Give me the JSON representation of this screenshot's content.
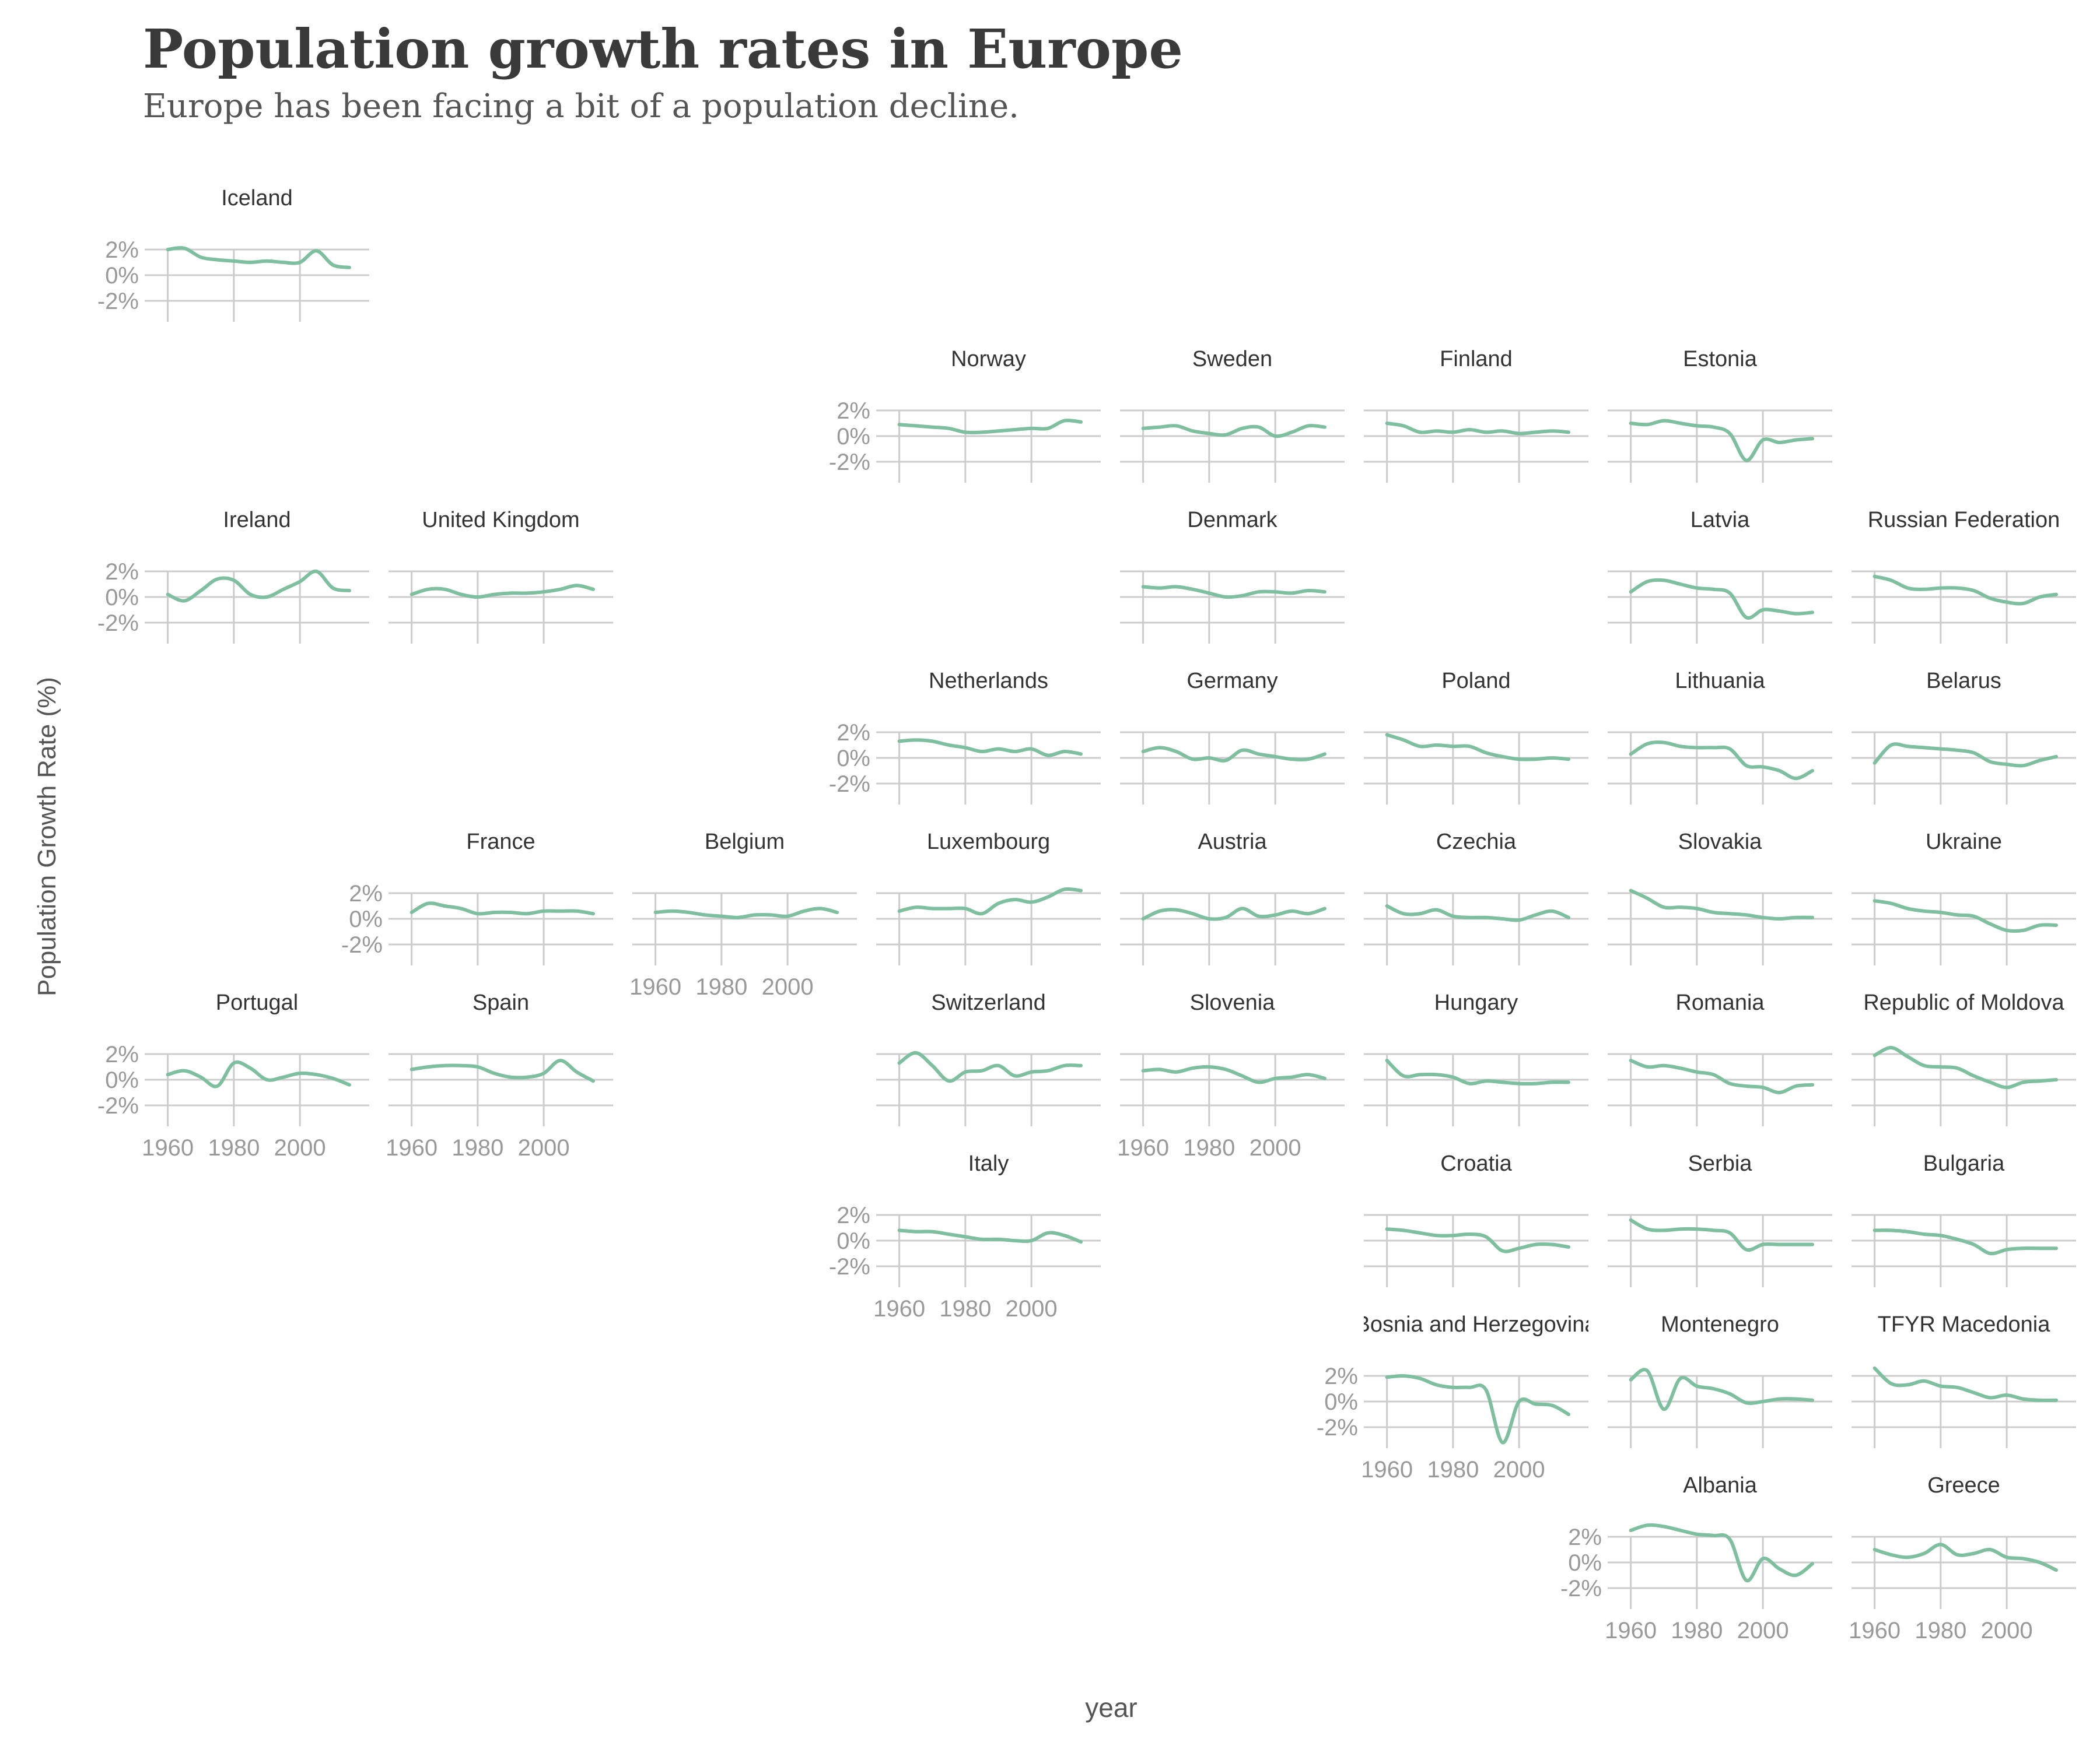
{
  "title": "Population growth rates in Europe",
  "subtitle": "Europe has been facing a bit of a population decline.",
  "chart_data": {
    "type": "line",
    "title": "Population growth rates in Europe",
    "subtitle": "Europe has been facing a bit of a population decline.",
    "xlabel": "year",
    "ylabel": "Population Growth Rate (%)",
    "x": [
      1960,
      1965,
      1970,
      1975,
      1980,
      1985,
      1990,
      1995,
      2000,
      2005,
      2010,
      2015
    ],
    "xlim": [
      1953,
      2021
    ],
    "ylim": [
      -3.2,
      3.2
    ],
    "xticks": [
      1960,
      1980,
      2000
    ],
    "yticks": [
      -2,
      0,
      2
    ],
    "ytick_labels": [
      "-2%",
      "0%",
      "2%"
    ],
    "line_color": "#7dbf9f",
    "grid": "on",
    "countries": [
      {
        "name": "Iceland",
        "row": 0,
        "col": 0,
        "y_labels": true,
        "x_labels": false,
        "values": [
          2.0,
          2.1,
          1.4,
          1.2,
          1.1,
          1.0,
          1.1,
          1.0,
          1.0,
          1.9,
          0.8,
          0.6
        ]
      },
      {
        "name": "Norway",
        "row": 1,
        "col": 3,
        "y_labels": true,
        "x_labels": false,
        "values": [
          0.9,
          0.8,
          0.7,
          0.6,
          0.3,
          0.3,
          0.4,
          0.5,
          0.6,
          0.6,
          1.2,
          1.1
        ]
      },
      {
        "name": "Sweden",
        "row": 1,
        "col": 4,
        "y_labels": false,
        "x_labels": false,
        "values": [
          0.6,
          0.7,
          0.8,
          0.4,
          0.2,
          0.1,
          0.6,
          0.7,
          0.0,
          0.3,
          0.8,
          0.7
        ]
      },
      {
        "name": "Finland",
        "row": 1,
        "col": 5,
        "y_labels": false,
        "x_labels": false,
        "values": [
          1.0,
          0.8,
          0.3,
          0.4,
          0.3,
          0.5,
          0.3,
          0.4,
          0.2,
          0.3,
          0.4,
          0.3
        ]
      },
      {
        "name": "Estonia",
        "row": 1,
        "col": 6,
        "y_labels": false,
        "x_labels": false,
        "values": [
          1.0,
          0.9,
          1.2,
          1.0,
          0.8,
          0.7,
          0.2,
          -1.9,
          -0.3,
          -0.5,
          -0.3,
          -0.2
        ]
      },
      {
        "name": "Ireland",
        "row": 2,
        "col": 0,
        "y_labels": true,
        "x_labels": false,
        "values": [
          0.2,
          -0.3,
          0.5,
          1.4,
          1.3,
          0.2,
          0.0,
          0.6,
          1.2,
          2.0,
          0.7,
          0.5
        ]
      },
      {
        "name": "United Kingdom",
        "row": 2,
        "col": 1,
        "y_labels": false,
        "x_labels": false,
        "values": [
          0.2,
          0.6,
          0.6,
          0.2,
          0.0,
          0.2,
          0.3,
          0.3,
          0.4,
          0.6,
          0.9,
          0.6
        ]
      },
      {
        "name": "Denmark",
        "row": 2,
        "col": 4,
        "y_labels": false,
        "x_labels": false,
        "values": [
          0.8,
          0.7,
          0.8,
          0.6,
          0.3,
          0.0,
          0.1,
          0.4,
          0.4,
          0.3,
          0.5,
          0.4
        ]
      },
      {
        "name": "Latvia",
        "row": 2,
        "col": 6,
        "y_labels": false,
        "x_labels": false,
        "values": [
          0.4,
          1.2,
          1.3,
          1.0,
          0.7,
          0.6,
          0.3,
          -1.6,
          -1.0,
          -1.1,
          -1.3,
          -1.2
        ]
      },
      {
        "name": "Russian Federation",
        "row": 2,
        "col": 7,
        "y_labels": false,
        "x_labels": false,
        "values": [
          1.6,
          1.3,
          0.7,
          0.6,
          0.7,
          0.7,
          0.5,
          -0.1,
          -0.4,
          -0.5,
          0.0,
          0.2
        ]
      },
      {
        "name": "Netherlands",
        "row": 3,
        "col": 3,
        "y_labels": true,
        "x_labels": false,
        "values": [
          1.3,
          1.4,
          1.3,
          1.0,
          0.8,
          0.5,
          0.7,
          0.5,
          0.7,
          0.2,
          0.5,
          0.3
        ]
      },
      {
        "name": "Germany",
        "row": 3,
        "col": 4,
        "y_labels": false,
        "x_labels": false,
        "values": [
          0.5,
          0.8,
          0.5,
          -0.1,
          0.0,
          -0.2,
          0.6,
          0.3,
          0.1,
          -0.1,
          -0.1,
          0.3
        ]
      },
      {
        "name": "Poland",
        "row": 3,
        "col": 5,
        "y_labels": false,
        "x_labels": false,
        "values": [
          1.8,
          1.4,
          0.9,
          1.0,
          0.9,
          0.9,
          0.4,
          0.1,
          -0.1,
          -0.1,
          0.0,
          -0.1
        ]
      },
      {
        "name": "Lithuania",
        "row": 3,
        "col": 6,
        "y_labels": false,
        "x_labels": false,
        "values": [
          0.3,
          1.1,
          1.2,
          0.9,
          0.8,
          0.8,
          0.7,
          -0.6,
          -0.7,
          -1.0,
          -1.6,
          -1.0
        ]
      },
      {
        "name": "Belarus",
        "row": 3,
        "col": 7,
        "y_labels": false,
        "x_labels": false,
        "values": [
          -0.4,
          1.0,
          0.9,
          0.8,
          0.7,
          0.6,
          0.4,
          -0.3,
          -0.5,
          -0.6,
          -0.2,
          0.1
        ]
      },
      {
        "name": "France",
        "row": 4,
        "col": 1,
        "y_labels": true,
        "x_labels": false,
        "values": [
          0.5,
          1.2,
          1.0,
          0.8,
          0.4,
          0.5,
          0.5,
          0.4,
          0.6,
          0.6,
          0.6,
          0.4
        ]
      },
      {
        "name": "Belgium",
        "row": 4,
        "col": 2,
        "y_labels": false,
        "x_labels": true,
        "values": [
          0.5,
          0.6,
          0.5,
          0.3,
          0.2,
          0.1,
          0.3,
          0.3,
          0.2,
          0.6,
          0.8,
          0.5
        ]
      },
      {
        "name": "Luxembourg",
        "row": 4,
        "col": 3,
        "y_labels": false,
        "x_labels": false,
        "values": [
          0.6,
          0.9,
          0.8,
          0.8,
          0.8,
          0.4,
          1.2,
          1.5,
          1.3,
          1.7,
          2.3,
          2.2
        ]
      },
      {
        "name": "Austria",
        "row": 4,
        "col": 4,
        "y_labels": false,
        "x_labels": false,
        "values": [
          0.0,
          0.6,
          0.7,
          0.4,
          0.0,
          0.1,
          0.8,
          0.2,
          0.3,
          0.6,
          0.4,
          0.8
        ]
      },
      {
        "name": "Czechia",
        "row": 4,
        "col": 5,
        "y_labels": false,
        "x_labels": false,
        "values": [
          1.0,
          0.4,
          0.4,
          0.7,
          0.2,
          0.1,
          0.1,
          0.0,
          -0.1,
          0.3,
          0.6,
          0.1
        ]
      },
      {
        "name": "Slovakia",
        "row": 4,
        "col": 6,
        "y_labels": false,
        "x_labels": false,
        "values": [
          2.2,
          1.6,
          0.9,
          0.9,
          0.8,
          0.5,
          0.4,
          0.3,
          0.1,
          0.0,
          0.1,
          0.1
        ]
      },
      {
        "name": "Ukraine",
        "row": 4,
        "col": 7,
        "y_labels": false,
        "x_labels": false,
        "values": [
          1.4,
          1.2,
          0.8,
          0.6,
          0.5,
          0.3,
          0.2,
          -0.4,
          -0.9,
          -0.9,
          -0.5,
          -0.5
        ]
      },
      {
        "name": "Portugal",
        "row": 5,
        "col": 0,
        "y_labels": true,
        "x_labels": true,
        "values": [
          0.4,
          0.7,
          0.2,
          -0.5,
          1.3,
          0.9,
          0.0,
          0.2,
          0.5,
          0.4,
          0.1,
          -0.4
        ]
      },
      {
        "name": "Spain",
        "row": 5,
        "col": 1,
        "y_labels": false,
        "x_labels": true,
        "values": [
          0.8,
          1.0,
          1.1,
          1.1,
          1.0,
          0.5,
          0.2,
          0.2,
          0.5,
          1.5,
          0.6,
          -0.1
        ]
      },
      {
        "name": "Switzerland",
        "row": 5,
        "col": 3,
        "y_labels": false,
        "x_labels": false,
        "values": [
          1.3,
          2.1,
          1.1,
          -0.1,
          0.6,
          0.7,
          1.1,
          0.3,
          0.6,
          0.7,
          1.1,
          1.1
        ]
      },
      {
        "name": "Slovenia",
        "row": 5,
        "col": 4,
        "y_labels": false,
        "x_labels": true,
        "values": [
          0.7,
          0.8,
          0.6,
          0.9,
          1.0,
          0.8,
          0.3,
          -0.2,
          0.1,
          0.2,
          0.4,
          0.1
        ]
      },
      {
        "name": "Hungary",
        "row": 5,
        "col": 5,
        "y_labels": false,
        "x_labels": false,
        "values": [
          1.5,
          0.3,
          0.4,
          0.4,
          0.2,
          -0.3,
          -0.1,
          -0.2,
          -0.3,
          -0.3,
          -0.2,
          -0.2
        ]
      },
      {
        "name": "Romania",
        "row": 5,
        "col": 6,
        "y_labels": false,
        "x_labels": false,
        "values": [
          1.5,
          1.0,
          1.1,
          0.9,
          0.6,
          0.4,
          -0.3,
          -0.5,
          -0.6,
          -1.0,
          -0.5,
          -0.4
        ]
      },
      {
        "name": "Republic of Moldova",
        "row": 5,
        "col": 7,
        "y_labels": false,
        "x_labels": false,
        "values": [
          1.9,
          2.5,
          1.8,
          1.1,
          1.0,
          0.9,
          0.3,
          -0.2,
          -0.6,
          -0.2,
          -0.1,
          0.0
        ]
      },
      {
        "name": "Italy",
        "row": 6,
        "col": 3,
        "y_labels": true,
        "x_labels": true,
        "values": [
          0.8,
          0.7,
          0.7,
          0.5,
          0.3,
          0.1,
          0.1,
          0.0,
          0.0,
          0.6,
          0.4,
          -0.1
        ]
      },
      {
        "name": "Croatia",
        "row": 6,
        "col": 5,
        "y_labels": false,
        "x_labels": false,
        "values": [
          0.9,
          0.8,
          0.6,
          0.4,
          0.4,
          0.5,
          0.3,
          -0.8,
          -0.6,
          -0.3,
          -0.3,
          -0.5
        ]
      },
      {
        "name": "Serbia",
        "row": 6,
        "col": 6,
        "y_labels": false,
        "x_labels": false,
        "values": [
          1.6,
          0.9,
          0.8,
          0.9,
          0.9,
          0.8,
          0.6,
          -0.7,
          -0.3,
          -0.3,
          -0.3,
          -0.3
        ]
      },
      {
        "name": "Bulgaria",
        "row": 6,
        "col": 7,
        "y_labels": false,
        "x_labels": false,
        "values": [
          0.8,
          0.8,
          0.7,
          0.5,
          0.4,
          0.1,
          -0.3,
          -1.0,
          -0.7,
          -0.6,
          -0.6,
          -0.6
        ]
      },
      {
        "name": "Bosnia and Herzegovina",
        "row": 7,
        "col": 5,
        "y_labels": true,
        "x_labels": true,
        "values": [
          1.9,
          2.0,
          1.8,
          1.3,
          1.1,
          1.1,
          0.9,
          -3.2,
          0.0,
          -0.2,
          -0.3,
          -1.0
        ]
      },
      {
        "name": "Montenegro",
        "row": 7,
        "col": 6,
        "y_labels": false,
        "x_labels": false,
        "values": [
          1.7,
          2.4,
          -0.6,
          1.8,
          1.2,
          1.0,
          0.6,
          -0.1,
          0.0,
          0.2,
          0.2,
          0.1
        ]
      },
      {
        "name": "TFYR Macedonia",
        "row": 7,
        "col": 7,
        "y_labels": false,
        "x_labels": false,
        "values": [
          2.6,
          1.4,
          1.3,
          1.6,
          1.2,
          1.1,
          0.7,
          0.3,
          0.5,
          0.2,
          0.1,
          0.1
        ]
      },
      {
        "name": "Albania",
        "row": 8,
        "col": 6,
        "y_labels": true,
        "x_labels": true,
        "values": [
          2.5,
          2.9,
          2.8,
          2.5,
          2.2,
          2.1,
          1.8,
          -1.4,
          0.3,
          -0.5,
          -1.0,
          -0.1
        ]
      },
      {
        "name": "Greece",
        "row": 8,
        "col": 7,
        "y_labels": false,
        "x_labels": true,
        "values": [
          1.0,
          0.6,
          0.4,
          0.7,
          1.4,
          0.6,
          0.7,
          1.0,
          0.4,
          0.3,
          0.0,
          -0.6
        ]
      }
    ]
  }
}
